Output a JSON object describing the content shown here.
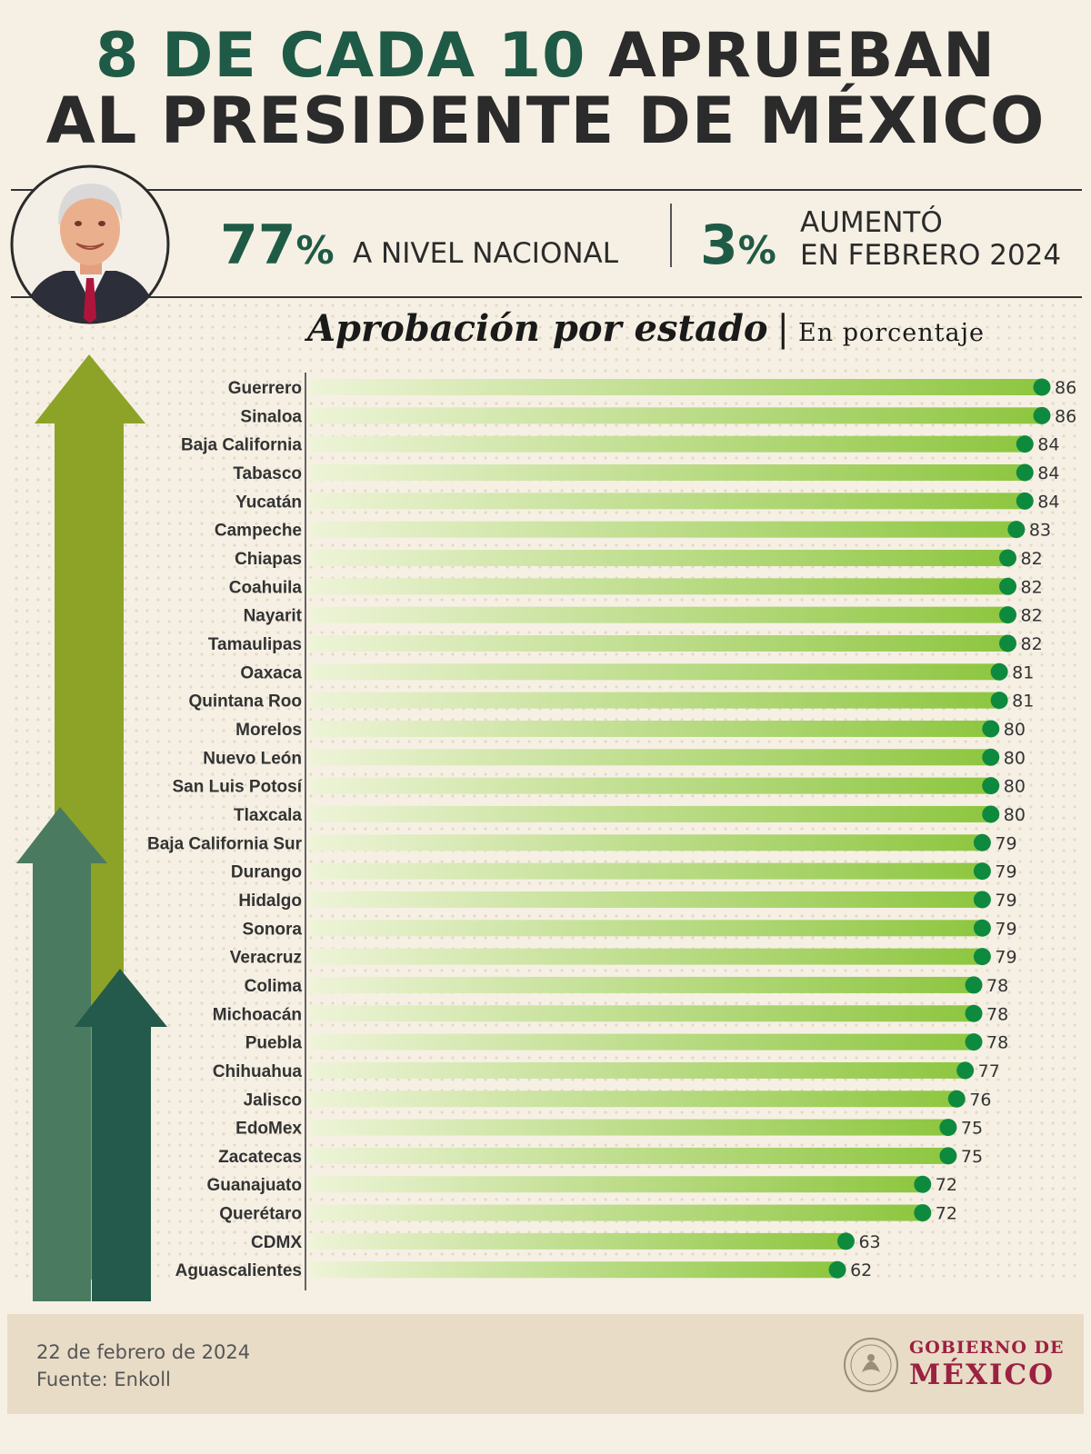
{
  "headline": {
    "line1_green": "8 DE CADA 10",
    "line1_dark": "APRUEBAN",
    "line2": "AL PRESIDENTE DE MÉXICO"
  },
  "stats": {
    "national_value": "77",
    "national_unit": "%",
    "national_label": "A NIVEL NACIONAL",
    "increase_value": "3",
    "increase_unit": "%",
    "increase_label_line1": "AUMENTÓ",
    "increase_label_line2": "EN FEBRERO 2024"
  },
  "colors": {
    "dark_green": "#1f5a46",
    "bar_light": "#eef4d8",
    "bar_dark": "#8dc63f",
    "dot": "#0e8a3e",
    "arrow_olive": "#8ca328",
    "arrow_sage": "#4a7a5f",
    "arrow_forest": "#235a4b",
    "gov_red": "#9b2142"
  },
  "chart_data": {
    "type": "bar",
    "orientation": "horizontal",
    "title": "Aprobación por estado",
    "subtitle": "En porcentaje",
    "categories": [
      "Guerrero",
      "Sinaloa",
      "Baja California",
      "Tabasco",
      "Yucatán",
      "Campeche",
      "Chiapas",
      "Coahuila",
      "Nayarit",
      "Tamaulipas",
      "Oaxaca",
      "Quintana Roo",
      "Morelos",
      "Nuevo León",
      "San Luis Potosí",
      "Tlaxcala",
      "Baja California Sur",
      "Durango",
      "Hidalgo",
      "Sonora",
      "Veracruz",
      "Colima",
      "Michoacán",
      "Puebla",
      "Chihuahua",
      "Jalisco",
      "EdoMex",
      "Zacatecas",
      "Guanajuato",
      "Querétaro",
      "CDMX",
      "Aguascalientes"
    ],
    "values": [
      86,
      86,
      84,
      84,
      84,
      83,
      82,
      82,
      82,
      82,
      81,
      81,
      80,
      80,
      80,
      80,
      79,
      79,
      79,
      79,
      79,
      78,
      78,
      78,
      77,
      76,
      75,
      75,
      72,
      72,
      63,
      62
    ],
    "xlim": [
      0,
      86
    ],
    "grid": false,
    "legend": "none"
  },
  "footer": {
    "date": "22 de febrero de 2024",
    "source": "Fuente: Enkoll",
    "gov_line1": "GOBIERNO DE",
    "gov_line2": "MÉXICO"
  }
}
